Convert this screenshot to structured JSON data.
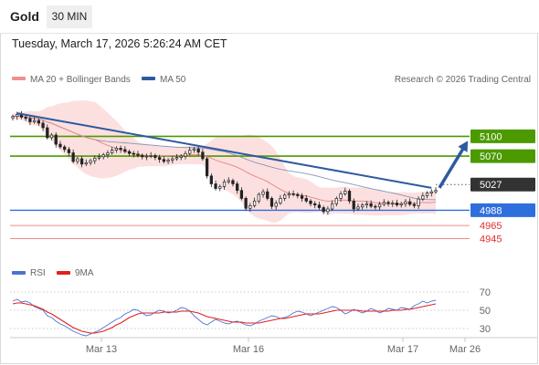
{
  "header": {
    "title": "Gold",
    "interval": "30 MIN",
    "timestamp": "Tuesday, March 17, 2026 5:26:24 AM CET"
  },
  "legend": {
    "ma20": "MA 20 + Bollinger Bands",
    "ma50": "MA 50",
    "credit": "Research © 2026 Trading Central"
  },
  "rsi_legend": {
    "rsi": "RSI",
    "ma": "9MA"
  },
  "colors": {
    "resistance": "#4c9a00",
    "support": "#2f6fdd",
    "minor_support": "#ef8b8b",
    "trendline": "#2d5aa0",
    "bollinger": "#fbd6d6",
    "ma20": "#e58484",
    "ma50": "#6b7fa8",
    "current": "#333333",
    "rsi": "#4a73d0",
    "rsi_ma": "#e02020"
  },
  "chart_data": [
    {
      "type": "candlestick",
      "title": "Gold",
      "ylim": [
        4925,
        5160
      ],
      "x_ticks": [
        "Mar 13",
        "Mar 16",
        "Mar 17",
        "Mar 26"
      ],
      "levels": [
        {
          "value": 5100,
          "label": "5100",
          "kind": "resistance"
        },
        {
          "value": 5070,
          "label": "5070",
          "kind": "resistance"
        },
        {
          "value": 5027,
          "label": "5027",
          "kind": "current"
        },
        {
          "value": 4988,
          "label": "4988",
          "kind": "support"
        },
        {
          "value": 4965,
          "label": "4965",
          "kind": "minor_support"
        },
        {
          "value": 4945,
          "label": "4945",
          "kind": "minor_support"
        }
      ],
      "closes": [
        5130,
        5133,
        5129,
        5127,
        5122,
        5124,
        5120,
        5113,
        5098,
        5102,
        5088,
        5084,
        5080,
        5075,
        5062,
        5066,
        5058,
        5060,
        5063,
        5067,
        5069,
        5072,
        5075,
        5079,
        5082,
        5080,
        5077,
        5074,
        5073,
        5071,
        5069,
        5070,
        5071,
        5068,
        5065,
        5062,
        5064,
        5066,
        5068,
        5070,
        5074,
        5079,
        5081,
        5076,
        5066,
        5040,
        5028,
        5021,
        5024,
        5031,
        5033,
        5028,
        5018,
        5006,
        4991,
        4995,
        5002,
        5012,
        5016,
        5006,
        4994,
        4999,
        5006,
        5011,
        5013,
        5012,
        5010,
        5006,
        5002,
        4998,
        4996,
        4992,
        4986,
        4990,
        4998,
        5006,
        5013,
        5017,
        5002,
        4990,
        4993,
        4996,
        4998,
        4994,
        4993,
        4997,
        5000,
        4998,
        4999,
        4996,
        4998,
        5001,
        4997,
        4995,
        5005,
        5010,
        5014,
        5016,
        5018
      ]
    },
    {
      "type": "line",
      "title": "RSI",
      "ylim": [
        20,
        80
      ],
      "y_ticks": [
        70,
        50,
        30
      ],
      "series": [
        {
          "name": "RSI",
          "values": [
            60,
            62,
            59,
            60,
            58,
            54,
            52,
            50,
            44,
            42,
            38,
            35,
            33,
            30,
            27,
            25,
            23,
            22,
            24,
            26,
            28,
            31,
            34,
            37,
            40,
            42,
            46,
            48,
            51,
            50,
            47,
            44,
            45,
            48,
            50,
            49,
            47,
            48,
            50,
            53,
            52,
            49,
            44,
            40,
            36,
            34,
            37,
            40,
            38,
            36,
            35,
            37,
            38,
            36,
            34,
            33,
            35,
            38,
            40,
            42,
            44,
            43,
            41,
            42,
            44,
            47,
            49,
            48,
            46,
            44,
            46,
            48,
            50,
            52,
            54,
            53,
            50,
            46,
            48,
            51,
            49,
            47,
            49,
            52,
            50,
            47,
            49,
            52,
            51,
            50,
            53,
            52,
            51,
            55,
            57,
            60,
            58,
            60,
            61
          ]
        },
        {
          "name": "9MA",
          "values": [
            57,
            58,
            58,
            57,
            56,
            55,
            53,
            51,
            48,
            46,
            43,
            40,
            37,
            34,
            31,
            29,
            27,
            26,
            25,
            25,
            26,
            27,
            29,
            31,
            34,
            36,
            39,
            42,
            44,
            46,
            47,
            47,
            47,
            47,
            47,
            48,
            48,
            48,
            48,
            49,
            49,
            49,
            48,
            47,
            45,
            43,
            42,
            41,
            40,
            39,
            38,
            37,
            37,
            37,
            36,
            36,
            36,
            36,
            37,
            38,
            39,
            40,
            41,
            41,
            42,
            43,
            44,
            45,
            46,
            46,
            46,
            46,
            47,
            48,
            49,
            50,
            50,
            50,
            50,
            50,
            50,
            49,
            49,
            49,
            49,
            49,
            49,
            49,
            50,
            50,
            50,
            51,
            51,
            52,
            53,
            54,
            55,
            56,
            57
          ]
        }
      ]
    }
  ]
}
